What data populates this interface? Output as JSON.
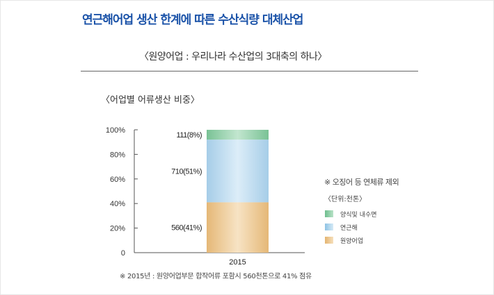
{
  "header": {
    "title": "연근해어업 생산 한계에 따른 수산식량 대체산업",
    "subtitle": "〈원양어업 : 우리나라 수산업의 3대축의 하나〉"
  },
  "notes": {
    "exclusion": "※ 오징어 등 연체류 제외",
    "unit": "〈단위:천톤〉",
    "footnote": "※ 2015년 : 원양어업부문 합작어류 포함시 560천톤으로 41% 점유"
  },
  "colors": {
    "aquaculture": "#8fcfa9",
    "coastal": "#bfdcee",
    "deep_sea": "#f1d2a4",
    "title_blue": "#1a52a8"
  },
  "chart_data": {
    "type": "bar",
    "stacked": true,
    "title": "〈어업별 어류생산 비중〉",
    "categories": [
      "2015"
    ],
    "yticks": [
      "0",
      "20%",
      "40%",
      "60%",
      "80%",
      "100%"
    ],
    "ylim": [
      0,
      100
    ],
    "series": [
      {
        "name": "원양어업",
        "values": [
          41
        ],
        "label": "560(41%)",
        "color": "#f1d2a4"
      },
      {
        "name": "연근해",
        "values": [
          51
        ],
        "label": "710(51%)",
        "color": "#bfdcee"
      },
      {
        "name": "양식및 내수면",
        "values": [
          8
        ],
        "label": "111(8%)",
        "color": "#8fcfa9"
      }
    ],
    "legend": [
      {
        "name": "양식및 내수면",
        "color": "#8fcfa9"
      },
      {
        "name": "연근해",
        "color": "#bfdcee"
      },
      {
        "name": "원양어업",
        "color": "#f1d2a4"
      }
    ],
    "legend_position": "right"
  }
}
